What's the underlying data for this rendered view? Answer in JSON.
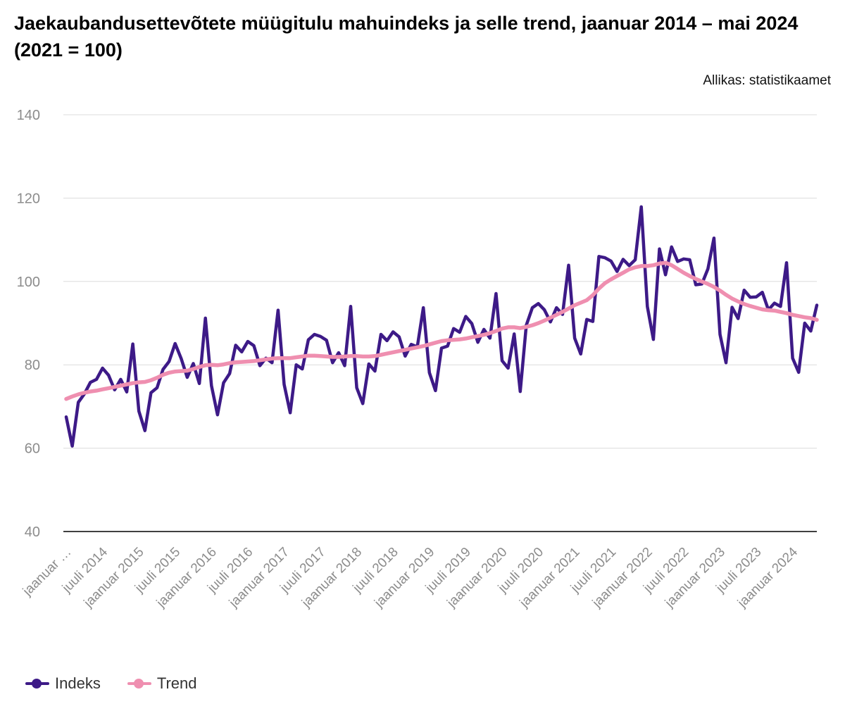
{
  "title": "Jaekaubandusettevõtete müügitulu mahuindeks ja selle trend, jaanuar 2014 – mai 2024 (2021 = 100)",
  "source": "Allikas: statistikaamet",
  "colors": {
    "indeks": "#3d1a87",
    "trend": "#ef8fb0",
    "grid": "#dcdcdc",
    "axis": "#000000"
  },
  "chart_data": {
    "type": "line",
    "title": "Jaekaubandusettevõtete müügitulu mahuindeks ja selle trend, jaanuar 2014 – mai 2024 (2021 = 100)",
    "xlabel": "",
    "ylabel": "",
    "ylim": [
      40,
      140
    ],
    "yticks": [
      40,
      60,
      80,
      100,
      120,
      140
    ],
    "grid": true,
    "legend_position": "bottom-left",
    "x_tick_labels": [
      "jaanuar …",
      "juuli 2014",
      "jaanuar 2015",
      "juuli 2015",
      "jaanuar 2016",
      "juuli 2016",
      "jaanuar 2017",
      "juuli 2017",
      "jaanuar 2018",
      "juuli 2018",
      "jaanuar 2019",
      "juuli 2019",
      "jaanuar 2020",
      "juuli 2020",
      "jaanuar 2021",
      "juuli 2021",
      "jaanuar 2022",
      "juuli 2022",
      "jaanuar 2023",
      "juuli 2023",
      "jaanuar 2024"
    ],
    "x_start": "2014-01",
    "x_end": "2024-05",
    "series": [
      {
        "name": "Indeks",
        "values": [
          67.5,
          60.5,
          71.0,
          73.0,
          75.8,
          76.5,
          79.2,
          77.5,
          74.0,
          76.5,
          73.5,
          85.0,
          68.9,
          64.2,
          73.3,
          74.5,
          78.9,
          80.8,
          85.1,
          81.5,
          77.0,
          80.3,
          75.5,
          91.2,
          75.0,
          68.0,
          75.7,
          77.9,
          84.7,
          83.1,
          85.6,
          84.6,
          79.8,
          81.6,
          80.5,
          93.1,
          75.3,
          68.5,
          80.0,
          79.0,
          86.0,
          87.3,
          86.8,
          85.9,
          80.5,
          82.9,
          79.8,
          94.0,
          74.5,
          70.7,
          80.2,
          78.5,
          87.3,
          85.8,
          87.9,
          86.7,
          82.1,
          84.9,
          84.3,
          93.7,
          78.1,
          73.8,
          84.0,
          84.5,
          88.7,
          87.8,
          91.6,
          89.9,
          85.4,
          88.5,
          86.4,
          97.1,
          81.0,
          79.2,
          87.4,
          73.6,
          89.5,
          93.7,
          94.7,
          93.2,
          90.3,
          93.7,
          92.1,
          103.9,
          86.4,
          82.6,
          90.9,
          90.4,
          106.0,
          105.7,
          104.9,
          102.4,
          105.3,
          103.8,
          105.2,
          117.9,
          94.0,
          86.1,
          107.8,
          101.6,
          108.3,
          104.8,
          105.4,
          105.2,
          99.2,
          99.4,
          103.0,
          110.4,
          87.3,
          80.5,
          93.8,
          91.1,
          97.9,
          96.2,
          96.3,
          97.4,
          93.2,
          94.8,
          94.0,
          104.5,
          81.6,
          78.2,
          90.0,
          88.1,
          94.3
        ]
      },
      {
        "name": "Trend",
        "values": [
          71.8,
          72.4,
          72.9,
          73.3,
          73.6,
          73.8,
          74.1,
          74.4,
          74.7,
          75.0,
          75.3,
          75.6,
          75.8,
          75.9,
          76.3,
          76.9,
          77.6,
          78.1,
          78.4,
          78.5,
          78.6,
          79.0,
          79.5,
          79.9,
          80.0,
          79.9,
          80.1,
          80.4,
          80.6,
          80.7,
          80.8,
          80.9,
          81.1,
          81.3,
          81.5,
          81.6,
          81.6,
          81.6,
          81.8,
          82.0,
          82.2,
          82.2,
          82.1,
          82.0,
          81.9,
          81.9,
          82.0,
          82.1,
          82.1,
          82.0,
          82.0,
          82.1,
          82.4,
          82.7,
          83.0,
          83.3,
          83.6,
          83.9,
          84.2,
          84.5,
          84.9,
          85.3,
          85.7,
          85.9,
          86.0,
          86.1,
          86.3,
          86.6,
          86.9,
          87.2,
          87.6,
          88.1,
          88.7,
          89.0,
          89.0,
          88.8,
          89.1,
          89.5,
          90.0,
          90.6,
          91.3,
          92.0,
          92.7,
          93.5,
          94.3,
          94.9,
          95.5,
          96.7,
          98.3,
          99.6,
          100.5,
          101.3,
          102.1,
          102.9,
          103.4,
          103.7,
          103.7,
          103.9,
          104.3,
          104.5,
          103.9,
          103.0,
          102.1,
          101.3,
          100.6,
          100.0,
          99.4,
          98.7,
          97.8,
          96.8,
          95.9,
          95.2,
          94.6,
          94.1,
          93.7,
          93.3,
          93.1,
          93.0,
          92.7,
          92.4,
          92.0,
          91.7,
          91.4,
          91.2,
          90.8
        ]
      }
    ]
  }
}
